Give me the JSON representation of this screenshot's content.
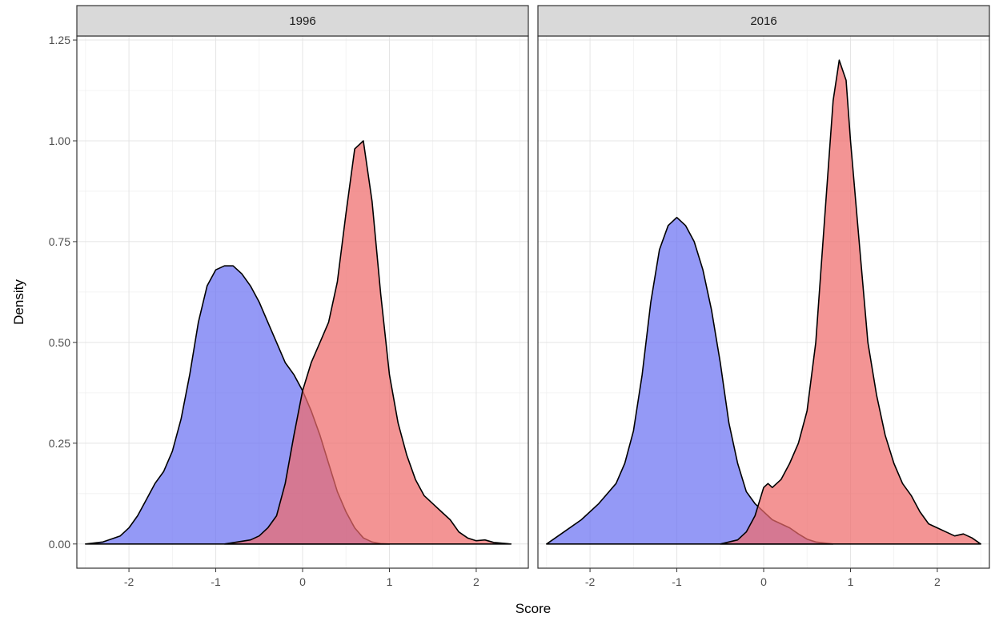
{
  "chart_data": {
    "type": "area",
    "xlabel": "Score",
    "ylabel": "Density",
    "xlim": [
      -2.6,
      2.6
    ],
    "ylim": [
      -0.06,
      1.26
    ],
    "x_ticks": [
      -2,
      -1,
      0,
      1,
      2
    ],
    "x_tick_labels": [
      "-2",
      "-1",
      "0",
      "1",
      "2"
    ],
    "y_ticks": [
      0,
      0.25,
      0.5,
      0.75,
      1.0,
      1.25
    ],
    "y_tick_labels": [
      "0.00",
      "0.25",
      "0.50",
      "0.75",
      "1.00",
      "1.25"
    ],
    "grid": true,
    "colors": {
      "blue": "#6b72f2",
      "red": "#ef6b6b",
      "outline": "#000000"
    },
    "panels": [
      {
        "label": "1996",
        "series": [
          {
            "color": "#6b72f2",
            "x": [
              -2.5,
              -2.3,
              -2.1,
              -2.0,
              -1.9,
              -1.8,
              -1.7,
              -1.6,
              -1.5,
              -1.4,
              -1.3,
              -1.2,
              -1.1,
              -1.0,
              -0.9,
              -0.8,
              -0.7,
              -0.6,
              -0.5,
              -0.4,
              -0.3,
              -0.2,
              -0.1,
              0.0,
              0.1,
              0.2,
              0.3,
              0.4,
              0.5,
              0.6,
              0.7,
              0.8,
              0.9,
              1.0
            ],
            "y": [
              0.0,
              0.005,
              0.02,
              0.04,
              0.07,
              0.11,
              0.15,
              0.18,
              0.23,
              0.31,
              0.42,
              0.55,
              0.64,
              0.68,
              0.69,
              0.69,
              0.67,
              0.64,
              0.6,
              0.55,
              0.5,
              0.45,
              0.42,
              0.38,
              0.33,
              0.27,
              0.2,
              0.13,
              0.08,
              0.04,
              0.015,
              0.005,
              0.001,
              0.0
            ]
          },
          {
            "color": "#ef6b6b",
            "x": [
              -0.9,
              -0.6,
              -0.5,
              -0.4,
              -0.3,
              -0.2,
              -0.1,
              0.0,
              0.1,
              0.2,
              0.3,
              0.4,
              0.5,
              0.6,
              0.7,
              0.8,
              0.9,
              1.0,
              1.1,
              1.2,
              1.3,
              1.4,
              1.5,
              1.6,
              1.7,
              1.8,
              1.9,
              2.0,
              2.1,
              2.2,
              2.4
            ],
            "y": [
              0.0,
              0.01,
              0.02,
              0.04,
              0.07,
              0.15,
              0.27,
              0.38,
              0.45,
              0.5,
              0.55,
              0.65,
              0.82,
              0.98,
              1.0,
              0.85,
              0.62,
              0.42,
              0.3,
              0.22,
              0.16,
              0.12,
              0.1,
              0.08,
              0.06,
              0.03,
              0.015,
              0.008,
              0.01,
              0.004,
              0.0
            ]
          }
        ]
      },
      {
        "label": "2016",
        "series": [
          {
            "color": "#6b72f2",
            "x": [
              -2.5,
              -2.3,
              -2.1,
              -1.9,
              -1.7,
              -1.6,
              -1.5,
              -1.4,
              -1.3,
              -1.2,
              -1.1,
              -1.0,
              -0.9,
              -0.8,
              -0.7,
              -0.6,
              -0.5,
              -0.4,
              -0.3,
              -0.2,
              -0.1,
              0.0,
              0.1,
              0.2,
              0.3,
              0.4,
              0.5,
              0.6,
              0.8
            ],
            "y": [
              0.0,
              0.03,
              0.06,
              0.1,
              0.15,
              0.2,
              0.28,
              0.42,
              0.6,
              0.73,
              0.79,
              0.81,
              0.79,
              0.75,
              0.68,
              0.58,
              0.45,
              0.3,
              0.2,
              0.13,
              0.1,
              0.08,
              0.06,
              0.05,
              0.04,
              0.025,
              0.012,
              0.005,
              0.0
            ]
          },
          {
            "color": "#ef6b6b",
            "x": [
              -0.5,
              -0.3,
              -0.2,
              -0.1,
              0.0,
              0.05,
              0.1,
              0.2,
              0.3,
              0.4,
              0.5,
              0.6,
              0.7,
              0.8,
              0.87,
              0.95,
              1.0,
              1.1,
              1.2,
              1.3,
              1.4,
              1.5,
              1.6,
              1.7,
              1.8,
              1.9,
              2.0,
              2.1,
              2.2,
              2.3,
              2.4,
              2.5
            ],
            "y": [
              0.0,
              0.01,
              0.03,
              0.07,
              0.14,
              0.15,
              0.14,
              0.16,
              0.2,
              0.25,
              0.33,
              0.5,
              0.8,
              1.1,
              1.2,
              1.15,
              1.0,
              0.75,
              0.5,
              0.37,
              0.27,
              0.2,
              0.15,
              0.12,
              0.08,
              0.05,
              0.04,
              0.03,
              0.02,
              0.025,
              0.015,
              0.0
            ]
          }
        ]
      }
    ]
  }
}
